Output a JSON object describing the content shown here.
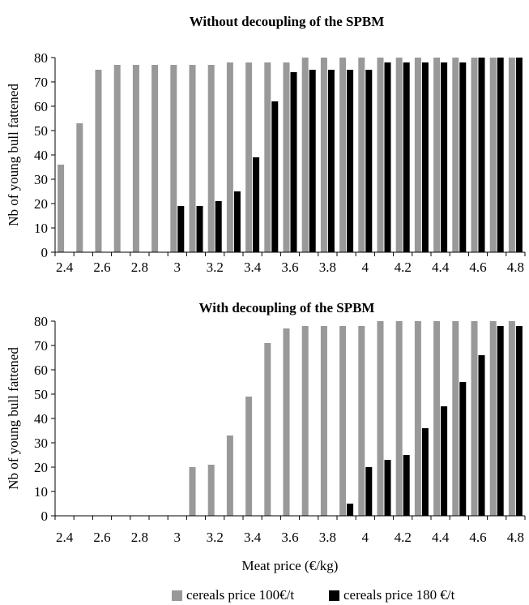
{
  "colors": {
    "series1": "#999999",
    "series2": "#000000",
    "axis": "#000000"
  },
  "chart_data": [
    {
      "type": "bar",
      "title": "Without decoupling of the SPBM",
      "xlabel": "",
      "ylabel": "Nb of young bull fattened",
      "ylim": [
        0,
        80
      ],
      "yticks": [
        "0",
        "10",
        "20",
        "30",
        "40",
        "50",
        "60",
        "70",
        "80"
      ],
      "categories": [
        "2.4",
        "2.5",
        "2.6",
        "2.7",
        "2.8",
        "2.9",
        "3",
        "3.1",
        "3.2",
        "3.3",
        "3.4",
        "3.5",
        "3.6",
        "3.7",
        "3.8",
        "3.9",
        "4",
        "4.1",
        "4.2",
        "4.3",
        "4.4",
        "4.5",
        "4.6",
        "4.7",
        "4.8"
      ],
      "x_tick_labels": [
        "2.4",
        "2.6",
        "2.8",
        "3",
        "3.2",
        "3.4",
        "3.6",
        "3.8",
        "4",
        "4.2",
        "4.4",
        "4.6",
        "4.8"
      ],
      "series": [
        {
          "name": "cereals price 100€/t",
          "values": [
            36,
            53,
            75,
            77,
            77,
            77,
            77,
            77,
            77,
            78,
            78,
            78,
            78,
            80,
            80,
            80,
            80,
            80,
            80,
            80,
            80,
            80,
            80,
            80,
            80
          ]
        },
        {
          "name": "cereals price 180 €/t",
          "values": [
            0,
            0,
            0,
            0,
            0,
            0,
            19,
            19,
            21,
            25,
            39,
            62,
            74,
            75,
            75,
            75,
            75,
            78,
            78,
            78,
            78,
            78,
            80,
            80,
            80
          ]
        }
      ]
    },
    {
      "type": "bar",
      "title": "With decoupling of the SPBM",
      "xlabel": "Meat price (€/kg)",
      "ylabel": "Nb of young bull fattened",
      "ylim": [
        0,
        80
      ],
      "yticks": [
        "0",
        "10",
        "20",
        "30",
        "40",
        "50",
        "60",
        "70",
        "80"
      ],
      "categories": [
        "2.4",
        "2.5",
        "2.6",
        "2.7",
        "2.8",
        "2.9",
        "3",
        "3.1",
        "3.2",
        "3.3",
        "3.4",
        "3.5",
        "3.6",
        "3.7",
        "3.8",
        "3.9",
        "4",
        "4.1",
        "4.2",
        "4.3",
        "4.4",
        "4.5",
        "4.6",
        "4.7",
        "4.8"
      ],
      "x_tick_labels": [
        "2.4",
        "2.6",
        "2.8",
        "3",
        "3.2",
        "3.4",
        "3.6",
        "3.8",
        "4",
        "4.2",
        "4.4",
        "4.6",
        "4.8"
      ],
      "series": [
        {
          "name": "cereals price 100€/t",
          "values": [
            0,
            0,
            0,
            0,
            0,
            0,
            0,
            20,
            21,
            33,
            49,
            71,
            77,
            78,
            78,
            78,
            78,
            80,
            80,
            80,
            80,
            80,
            80,
            80,
            80
          ]
        },
        {
          "name": "cereals price 180 €/t",
          "values": [
            0,
            0,
            0,
            0,
            0,
            0,
            0,
            0,
            0,
            0,
            0,
            0,
            0,
            0,
            0,
            5,
            20,
            23,
            25,
            36,
            45,
            55,
            66,
            78,
            78
          ]
        }
      ]
    }
  ],
  "legend": [
    {
      "label": "cereals price 100€/t"
    },
    {
      "label": "cereals price 180 €/t"
    }
  ]
}
